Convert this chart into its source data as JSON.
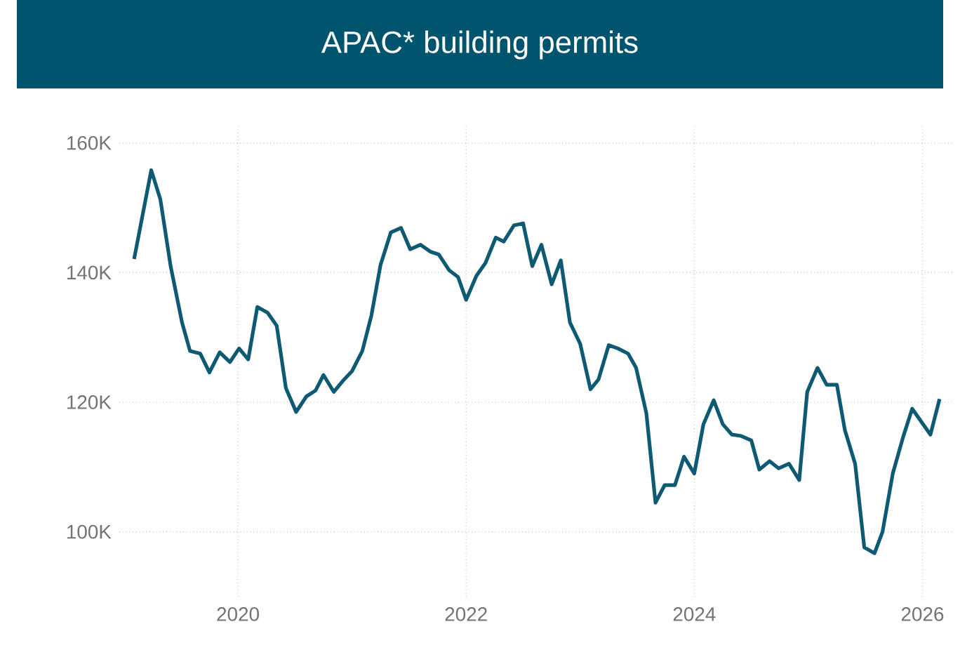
{
  "chart_data": {
    "type": "line",
    "title": "APAC* building permits",
    "x": [
      2019.09,
      2019.24,
      2019.32,
      2019.41,
      2019.51,
      2019.58,
      2019.67,
      2019.75,
      2019.84,
      2019.93,
      2020.01,
      2020.09,
      2020.17,
      2020.26,
      2020.34,
      2020.42,
      2020.51,
      2020.6,
      2020.68,
      2020.75,
      2020.84,
      2020.93,
      2021.0,
      2021.09,
      2021.17,
      2021.25,
      2021.34,
      2021.43,
      2021.51,
      2021.6,
      2021.69,
      2021.76,
      2021.85,
      2021.93,
      2022.0,
      2022.09,
      2022.17,
      2022.26,
      2022.33,
      2022.42,
      2022.5,
      2022.58,
      2022.66,
      2022.75,
      2022.83,
      2022.91,
      2023.0,
      2023.09,
      2023.16,
      2023.25,
      2023.33,
      2023.42,
      2023.49,
      2023.58,
      2023.66,
      2023.74,
      2023.83,
      2023.91,
      2024.0,
      2024.08,
      2024.17,
      2024.25,
      2024.33,
      2024.41,
      2024.5,
      2024.57,
      2024.66,
      2024.74,
      2024.83,
      2024.92,
      2024.99,
      2025.08,
      2025.16,
      2025.25,
      2025.32,
      2025.41,
      2025.49,
      2025.58,
      2025.65,
      2025.74,
      2025.83,
      2025.91,
      2025.99,
      2026.07,
      2026.15
    ],
    "series": [
      {
        "color": "#0e5a73",
        "values": [
          142100,
          155800,
          151300,
          141000,
          132300,
          127900,
          127500,
          124600,
          127700,
          126200,
          128300,
          126600,
          134700,
          133800,
          131800,
          122200,
          118500,
          120900,
          121800,
          124200,
          121600,
          123500,
          124800,
          127900,
          133400,
          141200,
          146200,
          146900,
          143600,
          144300,
          143200,
          142800,
          140400,
          139300,
          135800,
          139500,
          141500,
          145400,
          144800,
          147300,
          147600,
          141000,
          144300,
          138200,
          141900,
          132300,
          129000,
          122000,
          123500,
          128800,
          128300,
          127500,
          125300,
          118300,
          104500,
          107200,
          107200,
          111600,
          109000,
          116600,
          120300,
          116600,
          115000,
          114800,
          114100,
          109600,
          110900,
          109800,
          110500,
          108000,
          121600,
          125300,
          122700,
          122700,
          115700,
          110500,
          97600,
          96700,
          100000,
          109000,
          114600,
          119000,
          117000,
          115000,
          120500
        ]
      }
    ],
    "xlim": [
      2018.96,
      2026.28
    ],
    "ylim": [
      90000,
      163000
    ],
    "xticks": [
      2020,
      2022,
      2024,
      2026
    ],
    "yticks": [
      {
        "value": 100000,
        "label": "100K"
      },
      {
        "value": 120000,
        "label": "120K"
      },
      {
        "value": 140000,
        "label": "140K"
      },
      {
        "value": 160000,
        "label": "160K"
      }
    ],
    "grid": true,
    "marker": "none",
    "line_style": "solid"
  }
}
